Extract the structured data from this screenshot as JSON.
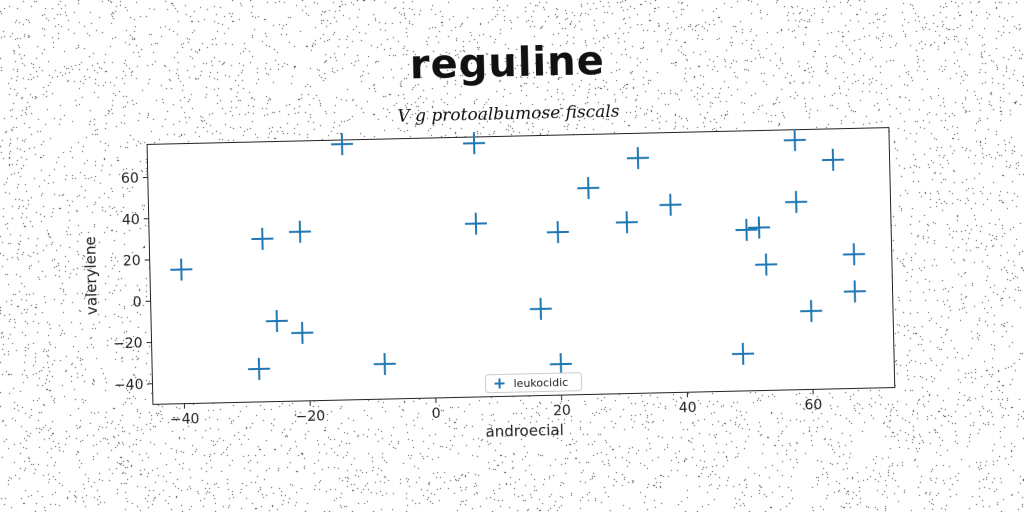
{
  "title": "reguline",
  "subtitle": "V g protoalbumose fiscals",
  "chart_data": {
    "type": "scatter",
    "xlabel": "androecial",
    "ylabel": "valerylene",
    "xlim": [
      -45,
      73
    ],
    "ylim": [
      -50,
      76
    ],
    "xticks": [
      -40,
      -20,
      0,
      20,
      40,
      60
    ],
    "yticks": [
      -40,
      -20,
      0,
      20,
      40,
      60
    ],
    "grid": false,
    "legend_position": "lower-center",
    "marker": "plus",
    "color": "#1f77b4",
    "series": [
      {
        "name": "leukocidic",
        "points": [
          [
            -40,
            15
          ],
          [
            -27,
            29
          ],
          [
            -21,
            32
          ],
          [
            -14,
            74
          ],
          [
            -25,
            -11
          ],
          [
            -21,
            -17
          ],
          [
            -28,
            -34
          ],
          [
            -8,
            -33
          ],
          [
            7,
            73
          ],
          [
            7,
            34
          ],
          [
            20,
            29
          ],
          [
            17,
            -8
          ],
          [
            20,
            -35
          ],
          [
            25,
            50
          ],
          [
            31,
            33
          ],
          [
            33,
            64
          ],
          [
            38,
            41
          ],
          [
            49,
            -32
          ],
          [
            50,
            28
          ],
          [
            52,
            29
          ],
          [
            53,
            11
          ],
          [
            58,
            71
          ],
          [
            58,
            41
          ],
          [
            64,
            61
          ],
          [
            60,
            -12
          ],
          [
            67,
            15
          ],
          [
            67,
            -3
          ]
        ]
      }
    ]
  }
}
